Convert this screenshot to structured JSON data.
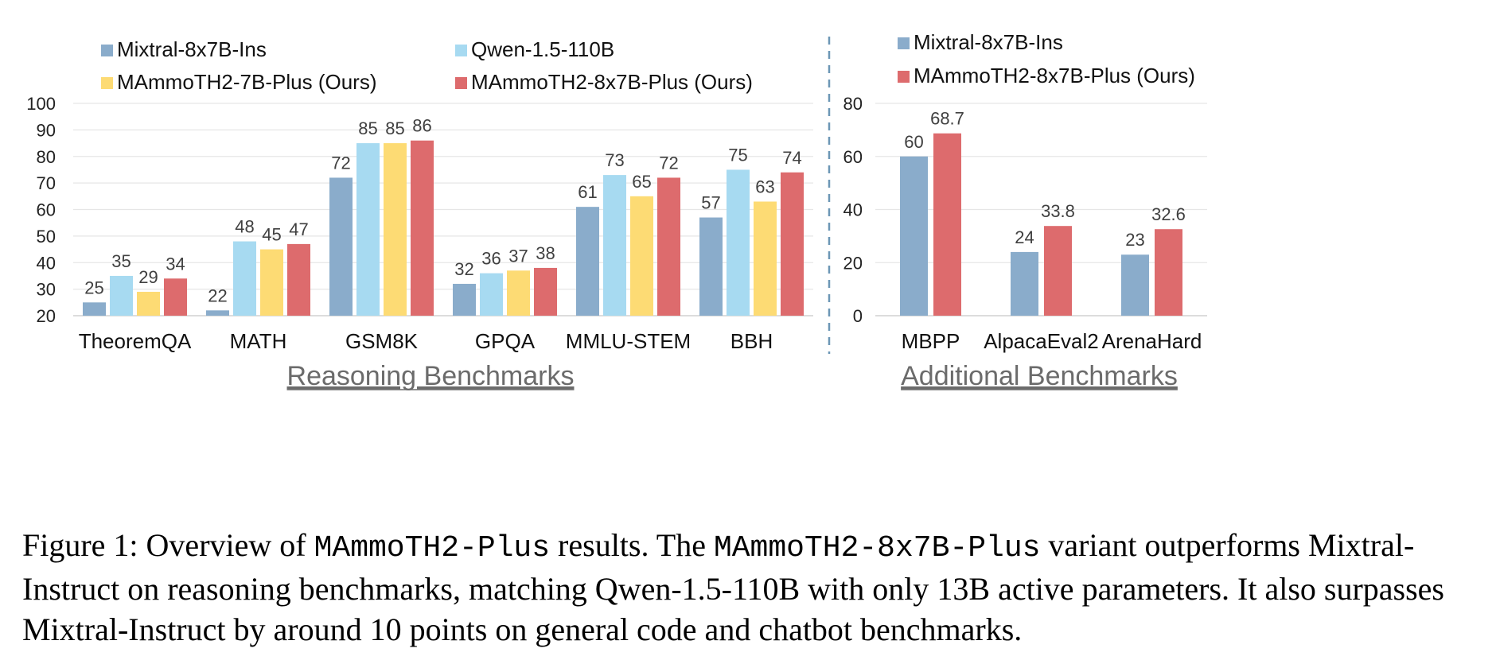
{
  "colors": {
    "Mixtral-8x7B-Ins": "#8aaccb",
    "Qwen-1.5-110B": "#a7daf1",
    "MAmmoTH2-7B-Plus (Ours)": "#fddb74",
    "MAmmoTH2-8x7B-Plus (Ours)": "#dd6b6d"
  },
  "chart_data": [
    {
      "type": "bar",
      "title": "Reasoning Benchmarks",
      "categories": [
        "TheoremQA",
        "MATH",
        "GSM8K",
        "GPQA",
        "MMLU-STEM",
        "BBH"
      ],
      "series": [
        {
          "name": "Mixtral-8x7B-Ins",
          "values": [
            25,
            22,
            72,
            32,
            61,
            57
          ],
          "labels": [
            "25",
            "22",
            "72",
            "32",
            "61",
            "57"
          ]
        },
        {
          "name": "Qwen-1.5-110B",
          "values": [
            35,
            48,
            85,
            36,
            73,
            75
          ],
          "labels": [
            "35",
            "48",
            "85",
            "36",
            "73",
            "75"
          ]
        },
        {
          "name": "MAmmoTH2-7B-Plus (Ours)",
          "values": [
            29,
            45,
            85,
            37,
            65,
            63
          ],
          "labels": [
            "29",
            "45",
            "85",
            "37",
            "65",
            "63"
          ]
        },
        {
          "name": "MAmmoTH2-8x7B-Plus (Ours)",
          "values": [
            34,
            47,
            86,
            38,
            72,
            74
          ],
          "labels": [
            "34",
            "47",
            "86",
            "38",
            "72",
            "74"
          ]
        }
      ],
      "ylim": [
        20,
        100
      ],
      "yticks": [
        "20",
        "30",
        "40",
        "50",
        "60",
        "70",
        "80",
        "90",
        "100"
      ],
      "grid": true,
      "legend": "top"
    },
    {
      "type": "bar",
      "title": "Additional Benchmarks",
      "categories": [
        "MBPP",
        "AlpacaEval2",
        "ArenaHard"
      ],
      "series": [
        {
          "name": "Mixtral-8x7B-Ins",
          "values": [
            60,
            24,
            23
          ],
          "labels": [
            "60",
            "24",
            "23"
          ]
        },
        {
          "name": "MAmmoTH2-8x7B-Plus (Ours)",
          "values": [
            68.7,
            33.8,
            32.6
          ],
          "labels": [
            "68.7",
            "33.8",
            "32.6"
          ]
        }
      ],
      "ylim": [
        0,
        80
      ],
      "yticks": [
        "0",
        "20",
        "40",
        "60",
        "80"
      ],
      "grid": true,
      "legend": "top"
    }
  ],
  "caption": {
    "prefix": "Figure 1: Overview of ",
    "model_name": "MAmmoTH2-Plus",
    "middle1": " results. The ",
    "variant_name": "MAmmoTH2-8x7B-Plus",
    "rest": " variant outperforms Mixtral-Instruct on reasoning benchmarks, matching Qwen-1.5-110B with only 13B active parameters. It also surpasses Mixtral-Instruct by around 10 points on general code and chatbot benchmarks."
  }
}
